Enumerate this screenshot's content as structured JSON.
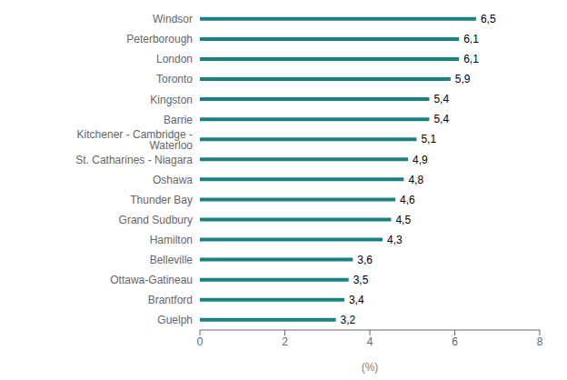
{
  "chart_data": {
    "type": "bar",
    "orientation": "horizontal",
    "xlabel": "(%)",
    "categories": [
      "Guelph",
      "Brantford",
      "Ottawa-Gatineau",
      "Belleville",
      "Hamilton",
      "Grand Sudbury",
      "Thunder Bay",
      "Oshawa",
      "St. Catharines - Niagara",
      "Kitchener - Cambridge - Waterloo",
      "Barrie",
      "Kingston",
      "Toronto",
      "London",
      "Peterborough",
      "Windsor"
    ],
    "values": [
      3.2,
      3.4,
      3.5,
      3.6,
      4.3,
      4.5,
      4.6,
      4.8,
      4.9,
      5.1,
      5.4,
      5.4,
      5.9,
      6.1,
      6.1,
      6.5
    ],
    "value_labels": [
      "3,2",
      "3,4",
      "3,5",
      "3,6",
      "4,3",
      "4,5",
      "4,6",
      "4,8",
      "4,9",
      "5,1",
      "5,4",
      "5,4",
      "5,9",
      "6,1",
      "6,1",
      "6,5"
    ],
    "data_labels": true,
    "color": "#1a8080",
    "xlim": [
      0,
      8
    ],
    "xticks": [
      0,
      2,
      4,
      6,
      8
    ],
    "grid": false
  }
}
